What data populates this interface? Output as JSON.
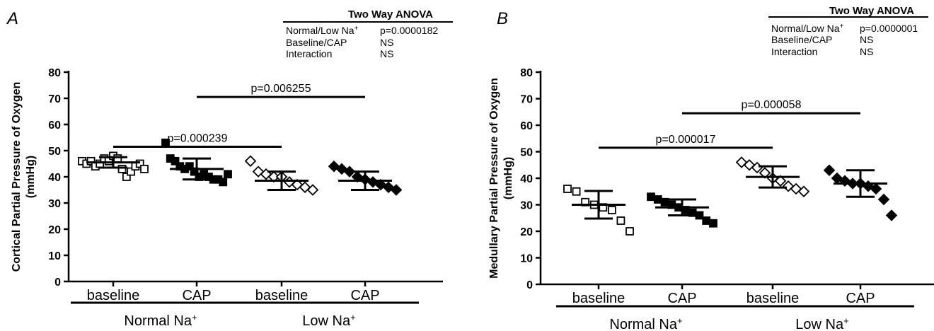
{
  "chart_data": [
    {
      "panel": "A",
      "type": "scatter",
      "ylabel": [
        "Cortical Partial Pressure of Oxygen",
        "(mmHg)"
      ],
      "ylim": [
        0,
        80
      ],
      "yticks": [
        0,
        10,
        20,
        30,
        40,
        50,
        60,
        70,
        80
      ],
      "categories": [
        "baseline",
        "CAP",
        "baseline",
        "CAP"
      ],
      "groups": [
        {
          "label": "Normal Na",
          "sup": "+",
          "span": [
            0,
            1
          ]
        },
        {
          "label": "Low Na",
          "sup": "+",
          "span": [
            2,
            3
          ]
        }
      ],
      "series": [
        {
          "marker": "square-open",
          "mean": 45.5,
          "sd": 2.0,
          "values": [
            46,
            45,
            46,
            44,
            45,
            47,
            46,
            48,
            47,
            43,
            40,
            42,
            44,
            45,
            43
          ]
        },
        {
          "marker": "square-filled",
          "mean": 43,
          "sd": 4.0,
          "values": [
            53,
            47,
            46,
            44,
            43,
            44,
            42,
            40,
            41,
            40,
            39,
            39,
            38,
            41
          ]
        },
        {
          "marker": "diamond-open",
          "mean": 38.5,
          "sd": 3.5,
          "values": [
            46,
            42,
            41,
            40,
            40,
            38,
            37,
            36,
            35
          ]
        },
        {
          "marker": "diamond-filled",
          "mean": 38.5,
          "sd": 3.5,
          "values": [
            44,
            43,
            42,
            40,
            39,
            38,
            37,
            36,
            35
          ]
        }
      ],
      "comparisons": [
        {
          "from": 0,
          "to": 2,
          "y": 51.5,
          "label": "p=0.000239"
        },
        {
          "from": 1,
          "to": 3,
          "y": 70.5,
          "label": "p=0.006255"
        }
      ],
      "anova": {
        "title": "Two Way ANOVA",
        "rows": [
          {
            "name": "Normal/Low Na",
            "sup": "+",
            "value": "p=0.0000182"
          },
          {
            "name": "Baseline/CAP",
            "sup": "",
            "value": "NS"
          },
          {
            "name": "Interaction",
            "sup": "",
            "value": "NS"
          }
        ]
      }
    },
    {
      "panel": "B",
      "type": "scatter",
      "ylabel": [
        "Medullary Partial Pressure of Oxygen",
        "(mmHg)"
      ],
      "ylim": [
        0,
        80
      ],
      "yticks": [
        0,
        10,
        20,
        30,
        40,
        50,
        60,
        70,
        80
      ],
      "categories": [
        "baseline",
        "CAP",
        "baseline",
        "CAP"
      ],
      "groups": [
        {
          "label": "Normal Na",
          "sup": "+",
          "span": [
            0,
            1
          ]
        },
        {
          "label": "Low Na",
          "sup": "+",
          "span": [
            2,
            3
          ]
        }
      ],
      "series": [
        {
          "marker": "square-open",
          "mean": 30,
          "sd": 5.2,
          "values": [
            36,
            35,
            31,
            30,
            29,
            28,
            24,
            20
          ]
        },
        {
          "marker": "square-filled",
          "mean": 29,
          "sd": 3.0,
          "values": [
            33,
            32,
            31,
            30,
            29,
            28,
            27,
            26,
            24,
            23
          ]
        },
        {
          "marker": "diamond-open",
          "mean": 40.5,
          "sd": 4.0,
          "values": [
            46,
            45,
            44,
            42,
            40,
            39,
            37,
            36,
            35
          ]
        },
        {
          "marker": "diamond-filled",
          "mean": 38,
          "sd": 5.0,
          "values": [
            43,
            40,
            39,
            38,
            38,
            37,
            36,
            32,
            26
          ]
        }
      ],
      "comparisons": [
        {
          "from": 0,
          "to": 2,
          "y": 51.5,
          "label": "p=0.000017"
        },
        {
          "from": 1,
          "to": 3,
          "y": 64.5,
          "label": "p=0.000058"
        }
      ],
      "anova": {
        "title": "Two Way ANOVA",
        "rows": [
          {
            "name": "Normal/Low Na",
            "sup": "+",
            "value": "p=0.0000001"
          },
          {
            "name": "Baseline/CAP",
            "sup": "",
            "value": "NS"
          },
          {
            "name": "Interaction",
            "sup": "",
            "value": "NS"
          }
        ]
      }
    }
  ]
}
